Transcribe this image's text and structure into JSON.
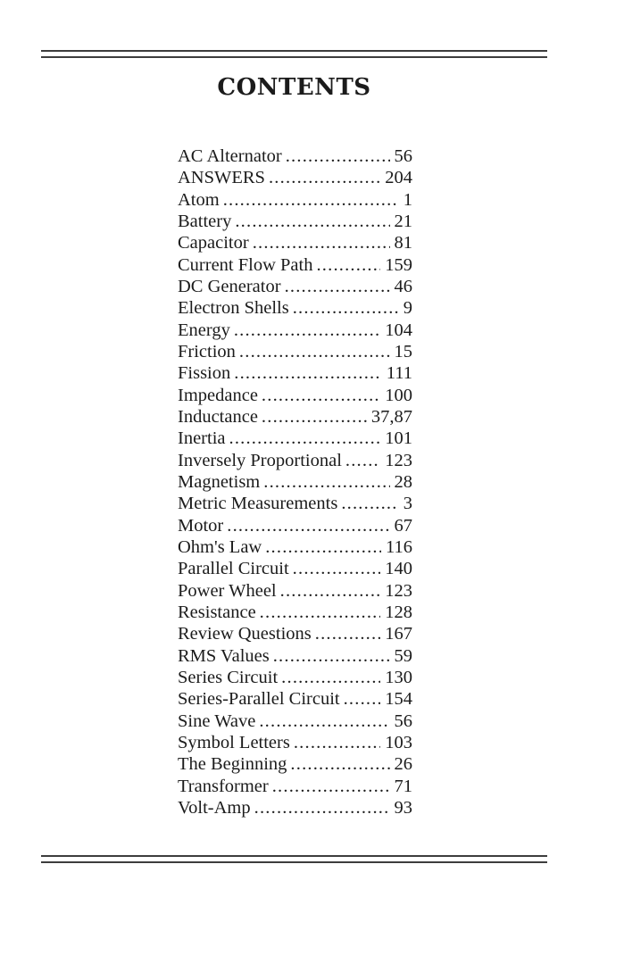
{
  "document": {
    "heading": "CONTENTS"
  },
  "colors": {
    "text": "#1b1b1b",
    "rule": "#3d3d3d",
    "background": "#ffffff"
  },
  "toc": {
    "entries": [
      {
        "title": "AC Alternator",
        "page": "56"
      },
      {
        "title": "ANSWERS",
        "page": "204"
      },
      {
        "title": "Atom",
        "page": "1"
      },
      {
        "title": "Battery",
        "page": "21"
      },
      {
        "title": "Capacitor",
        "page": "81"
      },
      {
        "title": "Current Flow Path",
        "page": "159"
      },
      {
        "title": "DC Generator",
        "page": "46"
      },
      {
        "title": "Electron Shells",
        "page": "9"
      },
      {
        "title": "Energy",
        "page": "104"
      },
      {
        "title": "Friction",
        "page": "15"
      },
      {
        "title": "Fission",
        "page": "111"
      },
      {
        "title": "Impedance",
        "page": "100"
      },
      {
        "title": "Inductance",
        "page": "37,87"
      },
      {
        "title": "Inertia",
        "page": "101"
      },
      {
        "title": "Inversely Proportional",
        "page": "123"
      },
      {
        "title": "Magnetism",
        "page": "28"
      },
      {
        "title": "Metric Measurements",
        "page": "3"
      },
      {
        "title": "Motor",
        "page": "67"
      },
      {
        "title": "Ohm's Law",
        "page": "116"
      },
      {
        "title": "Parallel Circuit",
        "page": "140"
      },
      {
        "title": "Power Wheel",
        "page": "123"
      },
      {
        "title": "Resistance",
        "page": "128"
      },
      {
        "title": "Review Questions",
        "page": "167"
      },
      {
        "title": "RMS Values",
        "page": "59"
      },
      {
        "title": "Series Circuit",
        "page": "130"
      },
      {
        "title": "Series-Parallel Circuit",
        "page": "154"
      },
      {
        "title": "Sine Wave",
        "page": "56"
      },
      {
        "title": "Symbol Letters",
        "page": "103"
      },
      {
        "title": "The Beginning",
        "page": "26"
      },
      {
        "title": "Transformer",
        "page": "71"
      },
      {
        "title": "Volt-Amp",
        "page": "93"
      }
    ]
  }
}
